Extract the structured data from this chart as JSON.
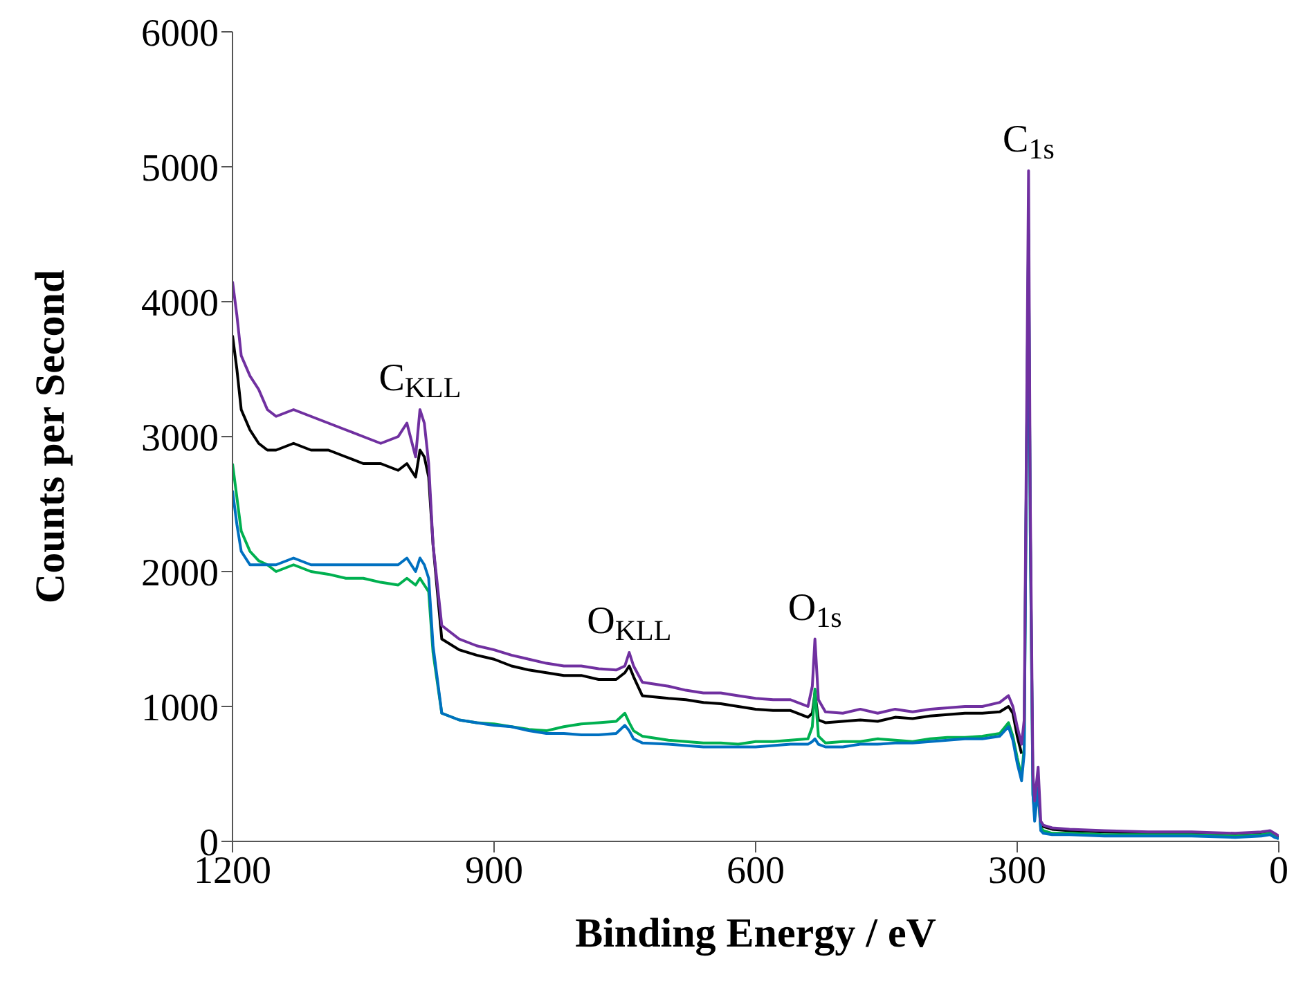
{
  "chart_data": {
    "type": "line",
    "xlabel": "Binding Energy / eV",
    "ylabel": "Counts per Second",
    "xlim": [
      1200,
      0
    ],
    "xticks": [
      1200,
      900,
      600,
      300,
      0
    ],
    "ylim": [
      0,
      6000
    ],
    "yticks": [
      0,
      1000,
      2000,
      3000,
      4000,
      5000,
      6000
    ],
    "grid": false,
    "legend": false,
    "marker": "none",
    "line_style": "solid",
    "x": [
      1200,
      1195,
      1190,
      1180,
      1170,
      1160,
      1150,
      1130,
      1110,
      1090,
      1070,
      1050,
      1030,
      1010,
      1000,
      990,
      985,
      980,
      975,
      970,
      960,
      940,
      920,
      900,
      880,
      860,
      840,
      820,
      800,
      780,
      760,
      750,
      745,
      740,
      730,
      700,
      680,
      660,
      640,
      620,
      600,
      580,
      560,
      540,
      535,
      532,
      528,
      520,
      500,
      480,
      460,
      440,
      420,
      400,
      380,
      360,
      340,
      320,
      310,
      305,
      300,
      295,
      292,
      290,
      287,
      285,
      282,
      280,
      276,
      273,
      270,
      260,
      240,
      200,
      150,
      100,
      50,
      20,
      10,
      5,
      0
    ],
    "series": [
      {
        "color": "#000000",
        "values": [
          3750,
          3500,
          3200,
          3050,
          2950,
          2900,
          2900,
          2950,
          2900,
          2900,
          2850,
          2800,
          2800,
          2750,
          2800,
          2700,
          2900,
          2850,
          2700,
          2200,
          1500,
          1420,
          1380,
          1350,
          1300,
          1270,
          1250,
          1230,
          1230,
          1200,
          1200,
          1250,
          1300,
          1220,
          1080,
          1060,
          1050,
          1030,
          1020,
          1000,
          980,
          970,
          970,
          920,
          950,
          1100,
          900,
          880,
          890,
          900,
          890,
          920,
          910,
          930,
          940,
          950,
          950,
          960,
          1000,
          950,
          780,
          650,
          null,
          null,
          null,
          null,
          null,
          null,
          null,
          130,
          110,
          90,
          80,
          70,
          60,
          60,
          50,
          60,
          70,
          50,
          30
        ]
      },
      {
        "color": "#00b050",
        "values": [
          2800,
          2550,
          2300,
          2150,
          2080,
          2050,
          2000,
          2050,
          2000,
          1980,
          1950,
          1950,
          1920,
          1900,
          1950,
          1900,
          1950,
          1900,
          1850,
          1400,
          950,
          900,
          880,
          870,
          850,
          830,
          820,
          850,
          870,
          880,
          890,
          950,
          880,
          820,
          780,
          750,
          740,
          730,
          730,
          720,
          740,
          740,
          750,
          760,
          850,
          1130,
          780,
          730,
          740,
          740,
          760,
          750,
          740,
          760,
          770,
          770,
          780,
          800,
          880,
          780,
          620,
          480,
          700,
          2300,
          4500,
          2300,
          350,
          200,
          350,
          100,
          80,
          60,
          60,
          50,
          50,
          50,
          40,
          50,
          60,
          40,
          20
        ]
      },
      {
        "color": "#0070c0",
        "values": [
          2600,
          2350,
          2150,
          2050,
          2050,
          2050,
          2050,
          2100,
          2050,
          2050,
          2050,
          2050,
          2050,
          2050,
          2100,
          2000,
          2100,
          2050,
          1950,
          1450,
          950,
          900,
          880,
          860,
          850,
          820,
          800,
          800,
          790,
          790,
          800,
          860,
          820,
          760,
          730,
          720,
          710,
          700,
          700,
          700,
          700,
          710,
          720,
          720,
          740,
          760,
          720,
          700,
          700,
          720,
          720,
          730,
          730,
          740,
          750,
          760,
          760,
          780,
          850,
          750,
          580,
          450,
          650,
          2300,
          4530,
          2300,
          350,
          150,
          400,
          80,
          60,
          50,
          50,
          40,
          40,
          40,
          30,
          40,
          50,
          30,
          20
        ]
      },
      {
        "color": "#7030a0",
        "values": [
          4150,
          3900,
          3600,
          3450,
          3350,
          3200,
          3150,
          3200,
          3150,
          3100,
          3050,
          3000,
          2950,
          3000,
          3100,
          2850,
          3200,
          3100,
          2800,
          2200,
          1600,
          1500,
          1450,
          1420,
          1380,
          1350,
          1320,
          1300,
          1300,
          1280,
          1270,
          1300,
          1400,
          1300,
          1180,
          1150,
          1120,
          1100,
          1100,
          1080,
          1060,
          1050,
          1050,
          1000,
          1150,
          1500,
          1050,
          960,
          950,
          980,
          950,
          980,
          960,
          980,
          990,
          1000,
          1000,
          1030,
          1080,
          1000,
          850,
          720,
          900,
          2500,
          4970,
          2500,
          500,
          300,
          550,
          150,
          120,
          100,
          90,
          80,
          70,
          70,
          60,
          70,
          80,
          60,
          40
        ]
      }
    ],
    "annotations": [
      {
        "text": "C$_{KLL}$",
        "x": 985,
        "y": 3200
      },
      {
        "text": "O$_{KLL}$",
        "x": 745,
        "y": 1400
      },
      {
        "text": "O$_{1s}$",
        "x": 532,
        "y": 1500
      },
      {
        "text": "C$_{1s}$",
        "x": 287,
        "y": 4970
      }
    ]
  }
}
